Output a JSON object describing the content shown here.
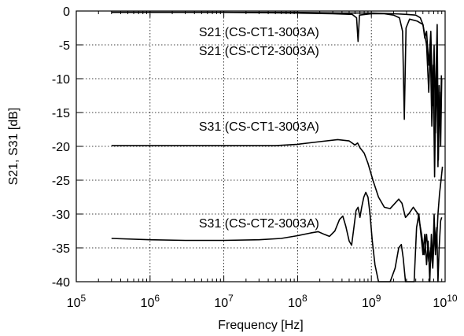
{
  "chart_data": {
    "type": "line",
    "title": "",
    "xlabel": "Frequency [Hz]",
    "ylabel": "S21, S31 [dB]",
    "xscale": "log",
    "xlim": [
      100000,
      10000000000
    ],
    "ylim": [
      -40,
      0
    ],
    "grid": true,
    "x_ticks": [
      {
        "value": 100000,
        "base": "10",
        "exp": "5"
      },
      {
        "value": 1000000,
        "base": "10",
        "exp": "6"
      },
      {
        "value": 10000000,
        "base": "10",
        "exp": "7"
      },
      {
        "value": 100000000,
        "base": "10",
        "exp": "8"
      },
      {
        "value": 1000000000,
        "base": "10",
        "exp": "9"
      },
      {
        "value": 10000000000,
        "base": "10",
        "exp": "10"
      }
    ],
    "y_ticks": [
      {
        "value": 0,
        "label": "0"
      },
      {
        "value": -5,
        "label": "-5"
      },
      {
        "value": -10,
        "label": "-10"
      },
      {
        "value": -15,
        "label": "-15"
      },
      {
        "value": -20,
        "label": "-20"
      },
      {
        "value": -25,
        "label": "-25"
      },
      {
        "value": -30,
        "label": "-30"
      },
      {
        "value": -35,
        "label": "-35"
      },
      {
        "value": -40,
        "label": "-40"
      }
    ],
    "annotations": [
      {
        "text": "S21 (CS-CT1-3003A)",
        "x": 30000000,
        "y": -3.0
      },
      {
        "text": "S21 (CS-CT2-3003A)",
        "x": 30000000,
        "y": -5.8
      },
      {
        "text": "S31 (CS-CT1-3003A)",
        "x": 30000000,
        "y": -17.0
      },
      {
        "text": "S31 (CS-CT2-3003A)",
        "x": 30000000,
        "y": -31.3
      }
    ],
    "series": [
      {
        "points": [
          [
            300000,
            -0.2
          ],
          [
            1000000,
            -0.2
          ],
          [
            10000000,
            -0.2
          ],
          [
            100000000,
            -0.3
          ],
          [
            300000000,
            -0.4
          ],
          [
            550000000,
            -0.5
          ],
          [
            630000000,
            -1.0
          ],
          [
            660000000,
            -4.5
          ],
          [
            690000000,
            -0.6
          ],
          [
            1000000000,
            -0.4
          ],
          [
            1500000000,
            -0.4
          ],
          [
            2000000000,
            -0.6
          ],
          [
            2400000000,
            -1.0
          ],
          [
            2650000000,
            -3.0
          ],
          [
            2800000000,
            -16.0
          ],
          [
            2950000000,
            -2.5
          ],
          [
            3300000000,
            -1.2
          ],
          [
            4200000000,
            -1.5
          ],
          [
            5000000000,
            -2.0
          ],
          [
            5600000000,
            -5.0
          ],
          [
            6000000000,
            -12.0
          ],
          [
            6300000000,
            -5.0
          ],
          [
            6600000000,
            -17.0
          ],
          [
            6900000000,
            -8.0
          ],
          [
            7200000000,
            -24.5
          ],
          [
            7500000000,
            -10.0
          ],
          [
            7800000000,
            -2.0
          ],
          [
            8100000000,
            -22.0
          ],
          [
            8400000000,
            -12.0
          ],
          [
            8700000000,
            -20.0
          ],
          [
            9000000000,
            -10.0
          ]
        ]
      },
      {
        "points": [
          [
            300000,
            -0.2
          ],
          [
            1000000,
            -0.2
          ],
          [
            10000000,
            -0.2
          ],
          [
            100000000,
            -0.2
          ],
          [
            400000000,
            -0.3
          ],
          [
            1000000000,
            -0.3
          ],
          [
            2000000000,
            -0.4
          ],
          [
            3000000000,
            -0.5
          ],
          [
            4000000000,
            -0.6
          ],
          [
            4600000000,
            -1.0
          ],
          [
            5000000000,
            -2.0
          ],
          [
            5300000000,
            -4.0
          ],
          [
            5600000000,
            -3.0
          ],
          [
            6000000000,
            -8.0
          ],
          [
            6400000000,
            -3.0
          ],
          [
            6800000000,
            -14.0
          ],
          [
            7100000000,
            -5.0
          ],
          [
            7400000000,
            -18.0
          ],
          [
            7700000000,
            -8.0
          ],
          [
            8000000000,
            -23.0
          ],
          [
            8300000000,
            -11.0
          ],
          [
            8600000000,
            -17.0
          ],
          [
            8900000000,
            -9.5
          ]
        ]
      },
      {
        "points": [
          [
            300000,
            -19.9
          ],
          [
            1000000,
            -19.9
          ],
          [
            10000000,
            -19.9
          ],
          [
            50000000,
            -19.9
          ],
          [
            100000000,
            -19.7
          ],
          [
            200000000,
            -19.3
          ],
          [
            350000000,
            -19.0
          ],
          [
            500000000,
            -19.2
          ],
          [
            600000000,
            -19.8
          ],
          [
            650000000,
            -19.5
          ],
          [
            700000000,
            -20.2
          ],
          [
            800000000,
            -21.0
          ],
          [
            900000000,
            -22.5
          ],
          [
            1050000000,
            -25.0
          ],
          [
            1250000000,
            -27.5
          ],
          [
            1500000000,
            -29.0
          ],
          [
            1800000000,
            -29.2
          ],
          [
            2100000000,
            -28.4
          ],
          [
            2350000000,
            -27.8
          ],
          [
            2600000000,
            -28.4
          ],
          [
            2900000000,
            -30.5
          ],
          [
            3200000000,
            -30.0
          ],
          [
            3700000000,
            -29.0
          ],
          [
            4300000000,
            -30.0
          ],
          [
            4800000000,
            -33.0
          ],
          [
            5200000000,
            -36.0
          ],
          [
            5600000000,
            -33.0
          ],
          [
            6000000000,
            -37.0
          ],
          [
            6400000000,
            -35.0
          ],
          [
            6800000000,
            -38.0
          ],
          [
            7200000000,
            -32.0
          ],
          [
            7600000000,
            -35.0
          ],
          [
            8000000000,
            -30.0
          ],
          [
            8400000000,
            -27.0
          ],
          [
            8800000000,
            -25.0
          ],
          [
            9200000000,
            -23.0
          ]
        ]
      },
      {
        "points": [
          [
            300000,
            -33.6
          ],
          [
            1000000,
            -33.8
          ],
          [
            3000000,
            -33.9
          ],
          [
            10000000,
            -33.9
          ],
          [
            30000000,
            -33.8
          ],
          [
            60000000,
            -33.6
          ],
          [
            100000000,
            -33.2
          ],
          [
            150000000,
            -32.8
          ],
          [
            190000000,
            -32.6
          ],
          [
            230000000,
            -33.0
          ],
          [
            270000000,
            -33.3
          ],
          [
            320000000,
            -32.5
          ],
          [
            370000000,
            -30.8
          ],
          [
            410000000,
            -30.3
          ],
          [
            450000000,
            -31.8
          ],
          [
            500000000,
            -34.0
          ],
          [
            540000000,
            -34.6
          ],
          [
            580000000,
            -32.0
          ],
          [
            620000000,
            -29.5
          ],
          [
            660000000,
            -29.0
          ],
          [
            700000000,
            -30.5
          ],
          [
            740000000,
            -29.0
          ],
          [
            790000000,
            -27.5
          ],
          [
            840000000,
            -26.8
          ],
          [
            900000000,
            -27.5
          ],
          [
            960000000,
            -30.0
          ],
          [
            1030000000,
            -34.0
          ],
          [
            1120000000,
            -37.5
          ],
          [
            1250000000,
            -40.0
          ],
          [
            1800000000,
            -40.0
          ],
          [
            2100000000,
            -38.0
          ],
          [
            2350000000,
            -35.0
          ],
          [
            2550000000,
            -34.5
          ],
          [
            2700000000,
            -36.5
          ],
          [
            2900000000,
            -40.0
          ],
          [
            3800000000,
            -40.0
          ],
          [
            4100000000,
            -32.0
          ],
          [
            4400000000,
            -30.0
          ],
          [
            4700000000,
            -33.0
          ],
          [
            5000000000,
            -36.0
          ],
          [
            5300000000,
            -33.0
          ],
          [
            5600000000,
            -37.5
          ],
          [
            5900000000,
            -34.0
          ],
          [
            6200000000,
            -40.0
          ],
          [
            6500000000,
            -33.0
          ],
          [
            6800000000,
            -37.0
          ],
          [
            7100000000,
            -30.0
          ],
          [
            7400000000,
            -36.0
          ],
          [
            7700000000,
            -32.0
          ],
          [
            8000000000,
            -40.0
          ],
          [
            8300000000,
            -35.0
          ],
          [
            8700000000,
            -31.0
          ],
          [
            9000000000,
            -30.5
          ]
        ]
      }
    ]
  }
}
